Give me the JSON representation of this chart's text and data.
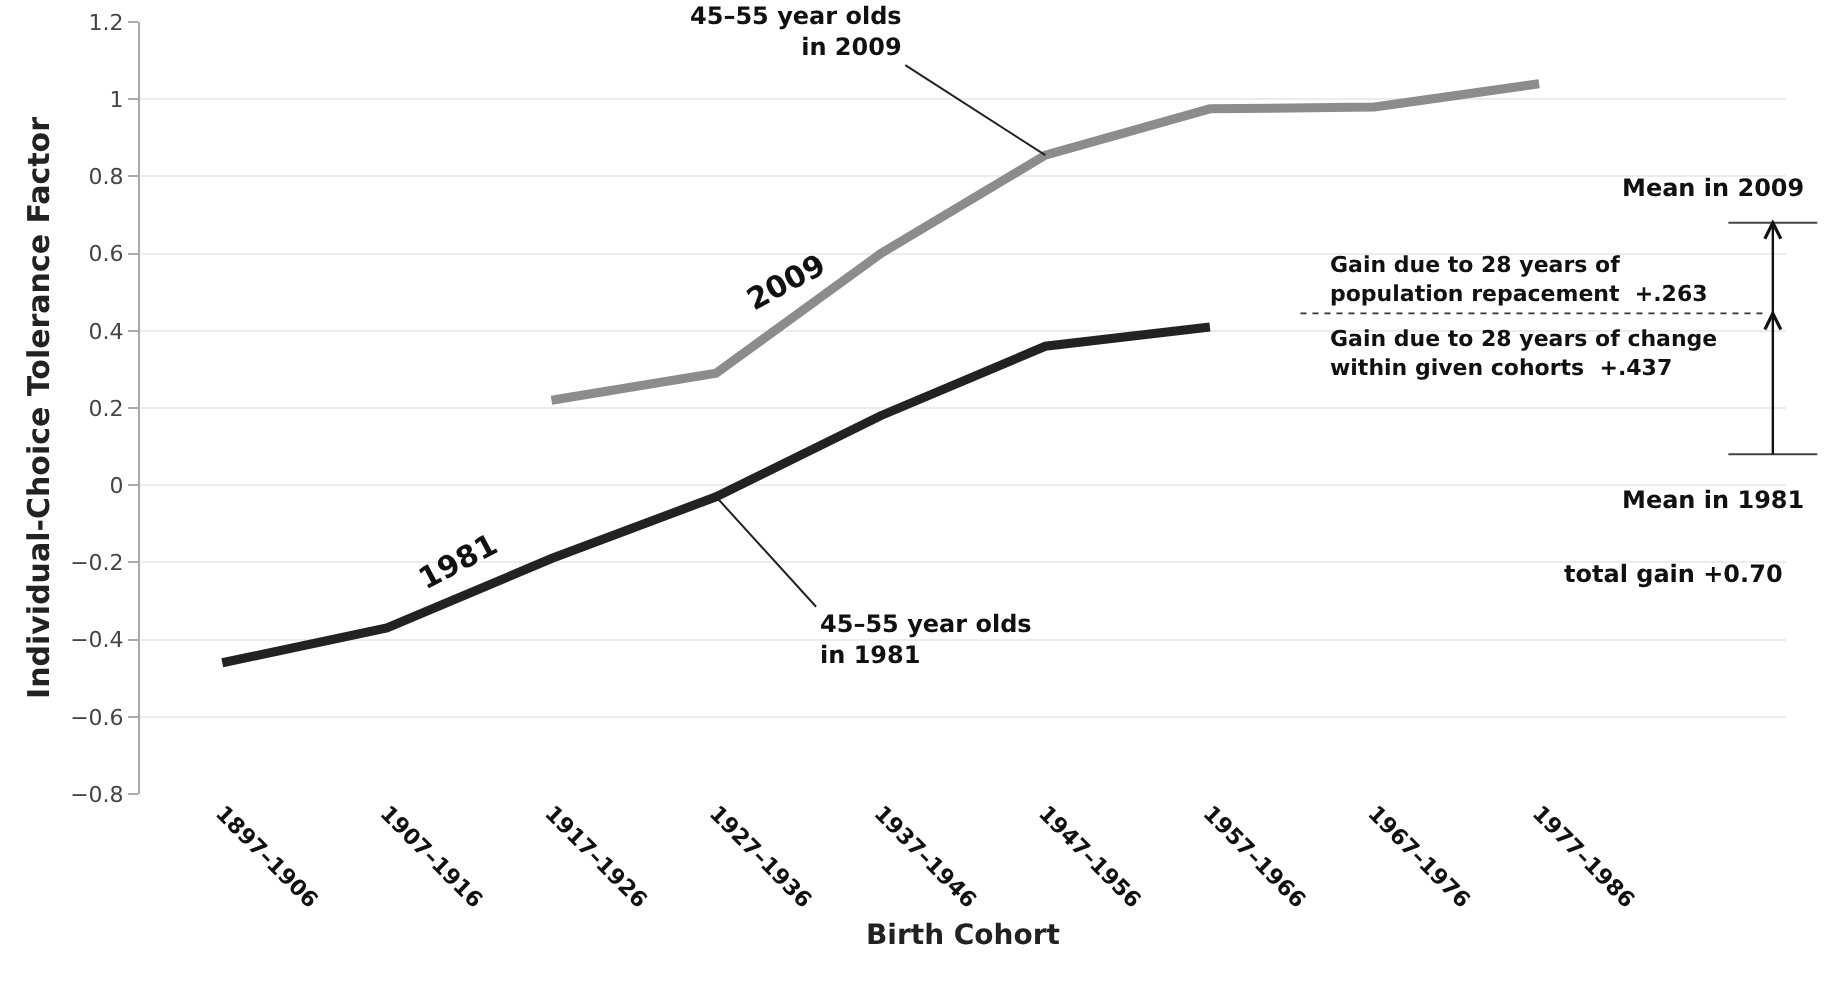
{
  "chart_data": {
    "type": "line",
    "xlabel": "Birth Cohort",
    "ylabel": "Individual-Choice Tolerance Factor",
    "categories": [
      "1897–1906",
      "1907–1916",
      "1917–1926",
      "1927–1936",
      "1937–1946",
      "1947–1956",
      "1957–1966",
      "1967–1976",
      "1977–1986"
    ],
    "series": [
      {
        "name": "1981",
        "color": "#222222",
        "values": [
          -0.46,
          -0.37,
          -0.19,
          -0.03,
          0.18,
          0.36,
          0.41,
          null,
          null
        ]
      },
      {
        "name": "2009",
        "color": "#8c8c8c",
        "values": [
          null,
          null,
          0.22,
          0.29,
          0.6,
          0.855,
          0.975,
          0.98,
          1.04
        ]
      }
    ],
    "ylim": [
      -0.8,
      1.2
    ],
    "yticks": [
      {
        "value": -0.8,
        "label": "−0.8"
      },
      {
        "value": -0.6,
        "label": "−0.6"
      },
      {
        "value": -0.4,
        "label": "−0.4"
      },
      {
        "value": -0.2,
        "label": "−0.2"
      },
      0,
      0.2,
      0.4,
      0.6,
      0.8,
      1,
      1.2
    ],
    "grid": "y",
    "legend": false,
    "marker": "none",
    "line_style": "solid",
    "annotations": [
      {
        "text": "45–55 year olds\nin 2009",
        "x": "1947–1956",
        "y": 0.855
      },
      {
        "text": "45–55 year olds\nin 1981",
        "x": "1927–1936",
        "y": -0.03
      },
      "Gain due to 28 years of\npopulation repacement  +.263",
      "Gain due to 28 years of change\nwithin given cohorts  +.437",
      "total gain +0.70"
    ],
    "ref_lines": [
      {
        "axis": "y",
        "value": 0.68,
        "label": "Mean in 2009",
        "color": "#444444",
        "line_style": "solid"
      },
      {
        "axis": "y",
        "value": 0.445,
        "color": "#333333",
        "line_style": "dotted"
      },
      {
        "axis": "y",
        "value": 0.08,
        "label": "Mean in 1981",
        "color": "#444444",
        "line_style": "solid"
      }
    ]
  }
}
